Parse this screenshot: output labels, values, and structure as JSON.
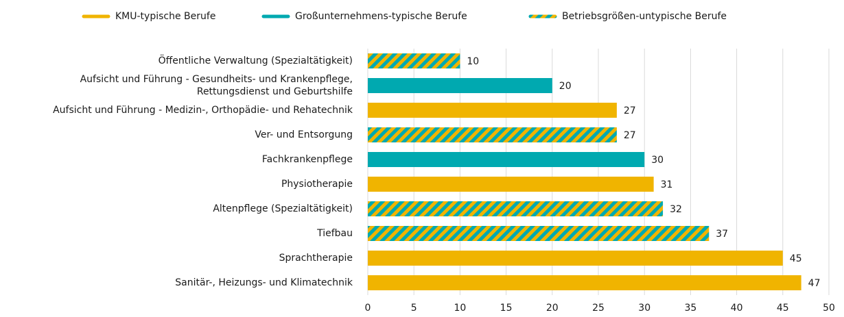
{
  "chart_data": {
    "type": "bar",
    "orientation": "horizontal",
    "categories": [
      "Öffentliche Verwaltung (Spezialtätigkeit)",
      "Aufsicht und Führung - Gesundheits- und Krankenpflege,\nRettungsdienst und Geburtshilfe",
      "Aufsicht und Führung - Medizin-, Orthopädie- und Rehatechnik",
      "Ver- und Entsorgung",
      "Fachkrankenpflege",
      "Physiotherapie",
      "Altenpflege (Spezialtätigkeit)",
      "Tiefbau",
      "Sprachtherapie",
      "Sanitär-, Heizungs- und Klimatechnik"
    ],
    "series": [
      {
        "name": "KMU-typische Berufe",
        "color": "#f0b400",
        "values": [
          null,
          null,
          27,
          null,
          null,
          31,
          null,
          null,
          45,
          47
        ]
      },
      {
        "name": "Großunternehmens-typische Berufe",
        "color": "#00a9b0",
        "values": [
          null,
          20,
          null,
          null,
          30,
          null,
          null,
          null,
          null,
          null
        ]
      },
      {
        "name": "Betriebsgrößen-untypische Berufe",
        "color": "#00a9b0",
        "hatch_color": "#f0b400",
        "values": [
          10,
          null,
          null,
          27,
          null,
          null,
          32,
          37,
          null,
          null
        ]
      }
    ],
    "xlim": [
      0,
      50
    ],
    "xticks": [
      0,
      5,
      10,
      15,
      20,
      25,
      30,
      35,
      40,
      45,
      50
    ],
    "grid": true,
    "legend": "top"
  }
}
